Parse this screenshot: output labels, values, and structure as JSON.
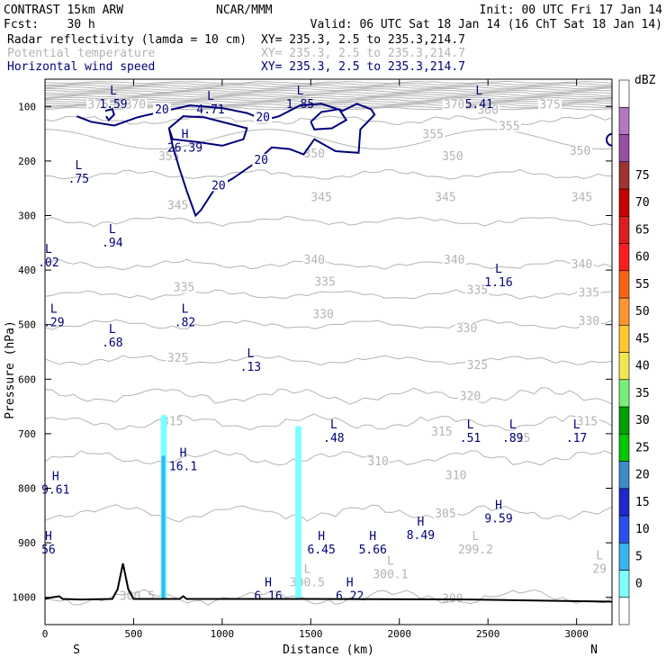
{
  "header": {
    "title": "CONTRAST 15km ARW",
    "org": "NCAR/MMM",
    "init": "Init: 00 UTC Fri 17 Jan 14",
    "fcst": "Fcst:    30 h",
    "valid": "Valid: 06 UTC Sat 18 Jan 14 (16 ChT Sat 18 Jan 14)",
    "field1": "Radar reflectivity (lamda = 10 cm)",
    "field1_xy": "XY= 235.3,  2.5 to 235.3,214.7",
    "field2": "Potential temperature",
    "field2_xy": "XY= 235.3,  2.5 to 235.3,214.7",
    "field3": "Horizontal wind speed",
    "field3_xy": "XY= 235.3,  2.5 to 235.3,214.7"
  },
  "colors": {
    "theta": "#b4b4b4",
    "wind": "#00007a",
    "terrain": "#000000",
    "refl_light": "#80ffff",
    "refl_mid": "#38b4f0"
  },
  "chart_data": {
    "type": "cross-section",
    "xlabel": "Distance (km)",
    "ylabel": "Pressure (hPa)",
    "xlim": [
      0,
      3200
    ],
    "ylim": [
      1050,
      50
    ],
    "x_ticks": [
      0,
      500,
      1000,
      1500,
      2000,
      2500,
      3000
    ],
    "y_ticks": [
      100,
      200,
      300,
      400,
      500,
      600,
      700,
      800,
      900,
      1000
    ],
    "end_labels": {
      "left": "S",
      "right": "N"
    },
    "theta_levels": [
      {
        "v": 300,
        "p": 1000
      },
      {
        "v": 305,
        "p": 845
      },
      {
        "v": 310,
        "p": 745
      },
      {
        "v": 315,
        "p": 680
      },
      {
        "v": 320,
        "p": 630
      },
      {
        "v": 325,
        "p": 565
      },
      {
        "v": 330,
        "p": 500
      },
      {
        "v": 335,
        "p": 445
      },
      {
        "v": 340,
        "p": 390
      },
      {
        "v": 345,
        "p": 310
      },
      {
        "v": 350,
        "p": 225
      },
      {
        "v": 355,
        "p": 160
      },
      {
        "v": 360,
        "p": 125
      },
      {
        "v": 370,
        "p": 100
      },
      {
        "v": 375,
        "p": 95
      }
    ],
    "theta_labels": [
      {
        "x": 300,
        "p": 100,
        "t": "375"
      },
      {
        "x": 510,
        "p": 100,
        "t": "370"
      },
      {
        "x": 2310,
        "p": 100,
        "t": "370"
      },
      {
        "x": 2500,
        "p": 110,
        "t": "360"
      },
      {
        "x": 2850,
        "p": 100,
        "t": "375"
      },
      {
        "x": 2190,
        "p": 155,
        "t": "355"
      },
      {
        "x": 2620,
        "p": 140,
        "t": "355"
      },
      {
        "x": 700,
        "p": 195,
        "t": "355"
      },
      {
        "x": 1520,
        "p": 190,
        "t": "350"
      },
      {
        "x": 2300,
        "p": 195,
        "t": "350"
      },
      {
        "x": 3020,
        "p": 185,
        "t": "350"
      },
      {
        "x": 750,
        "p": 285,
        "t": "345"
      },
      {
        "x": 1560,
        "p": 270,
        "t": "345"
      },
      {
        "x": 2260,
        "p": 270,
        "t": "345"
      },
      {
        "x": 3030,
        "p": 270,
        "t": "345"
      },
      {
        "x": 1520,
        "p": 385,
        "t": "340"
      },
      {
        "x": 2310,
        "p": 385,
        "t": "340"
      },
      {
        "x": 3030,
        "p": 393,
        "t": "340"
      },
      {
        "x": 785,
        "p": 435,
        "t": "335"
      },
      {
        "x": 1580,
        "p": 425,
        "t": "335"
      },
      {
        "x": 2440,
        "p": 440,
        "t": "335"
      },
      {
        "x": 3070,
        "p": 445,
        "t": "335"
      },
      {
        "x": 1570,
        "p": 485,
        "t": "330"
      },
      {
        "x": 2380,
        "p": 510,
        "t": "330"
      },
      {
        "x": 3070,
        "p": 497,
        "t": "330"
      },
      {
        "x": 750,
        "p": 565,
        "t": "325"
      },
      {
        "x": 2440,
        "p": 578,
        "t": "325"
      },
      {
        "x": 2400,
        "p": 635,
        "t": "320"
      },
      {
        "x": 720,
        "p": 681,
        "t": "315"
      },
      {
        "x": 2240,
        "p": 700,
        "t": "315"
      },
      {
        "x": 2680,
        "p": 712,
        "t": "315"
      },
      {
        "x": 3060,
        "p": 681,
        "t": "315"
      },
      {
        "x": 1880,
        "p": 755,
        "t": "310"
      },
      {
        "x": 2320,
        "p": 780,
        "t": "310"
      },
      {
        "x": 2260,
        "p": 850,
        "t": "305"
      }
    ],
    "theta_marks": [
      {
        "x": 1480,
        "p": 975,
        "kind": "L",
        "val": "300.5"
      },
      {
        "x": 520,
        "p": 1000,
        "kind": "",
        "val": "300.5"
      },
      {
        "x": 2430,
        "p": 915,
        "kind": "L",
        "val": "299.2"
      },
      {
        "x": 1950,
        "p": 960,
        "kind": "L",
        "val": "300.1"
      },
      {
        "x": 2300,
        "p": 1005,
        "kind": "",
        "val": "300"
      },
      {
        "x": 3130,
        "p": 950,
        "kind": "L",
        "val": "29"
      }
    ],
    "wind_contours": [
      {
        "label": "20",
        "label_x": 660,
        "label_p": 108
      },
      {
        "label": "20",
        "label_x": 1230,
        "label_p": 122
      },
      {
        "label": "20",
        "label_x": 1220,
        "label_p": 200
      },
      {
        "label": "20",
        "label_x": 980,
        "label_p": 247
      }
    ],
    "wind_marks": [
      {
        "kind": "L",
        "x": 386,
        "p": 88,
        "val": "1.59"
      },
      {
        "kind": "L",
        "x": 935,
        "p": 98,
        "val": "4.71"
      },
      {
        "kind": "L",
        "x": 1440,
        "p": 88,
        "val": "1.85"
      },
      {
        "kind": "L",
        "x": 2450,
        "p": 88,
        "val": "5.41"
      },
      {
        "kind": "H",
        "x": 790,
        "p": 168,
        "val": "26.39"
      },
      {
        "kind": "L",
        "x": 190,
        "p": 225,
        "val": ".75"
      },
      {
        "kind": "L",
        "x": 380,
        "p": 342,
        "val": ".94"
      },
      {
        "kind": "L",
        "x": 20,
        "p": 378,
        "val": ".02"
      },
      {
        "kind": "L",
        "x": 2560,
        "p": 415,
        "val": "1.16"
      },
      {
        "kind": "L",
        "x": 50,
        "p": 488,
        "val": ".29"
      },
      {
        "kind": "L",
        "x": 790,
        "p": 488,
        "val": ".82"
      },
      {
        "kind": "L",
        "x": 380,
        "p": 525,
        "val": ".68"
      },
      {
        "kind": "L",
        "x": 1160,
        "p": 570,
        "val": ".13"
      },
      {
        "kind": "L",
        "x": 1630,
        "p": 700,
        "val": ".48"
      },
      {
        "kind": "L",
        "x": 2400,
        "p": 700,
        "val": ".51"
      },
      {
        "kind": "L",
        "x": 2640,
        "p": 700,
        "val": ".89"
      },
      {
        "kind": "L",
        "x": 3000,
        "p": 700,
        "val": ".17"
      },
      {
        "kind": "H",
        "x": 780,
        "p": 752,
        "val": "16.1"
      },
      {
        "kind": "H",
        "x": 60,
        "p": 795,
        "val": "9.61"
      },
      {
        "kind": "H",
        "x": 2560,
        "p": 848,
        "val": "9.59"
      },
      {
        "kind": "H",
        "x": 2120,
        "p": 878,
        "val": "8.49"
      },
      {
        "kind": "H",
        "x": 1560,
        "p": 905,
        "val": "6.45"
      },
      {
        "kind": "H",
        "x": 1850,
        "p": 905,
        "val": "5.66"
      },
      {
        "kind": "H",
        "x": 20,
        "p": 905,
        "val": "56"
      },
      {
        "kind": "H",
        "x": 1260,
        "p": 990,
        "val": "6.16"
      },
      {
        "kind": "H",
        "x": 1720,
        "p": 990,
        "val": "6.22"
      }
    ],
    "reflectivity_columns": [
      {
        "x": 670,
        "p_top": 665,
        "p_bottom": 1005,
        "dbz": 7
      },
      {
        "x": 668,
        "p_top": 740,
        "p_bottom": 1005,
        "dbz": 12
      },
      {
        "x": 1430,
        "p_top": 685,
        "p_bottom": 1005,
        "dbz": 7
      }
    ],
    "terrain": [
      {
        "x": 0,
        "p": 1003
      },
      {
        "x": 40,
        "p": 1000
      },
      {
        "x": 80,
        "p": 998
      },
      {
        "x": 100,
        "p": 1003
      },
      {
        "x": 200,
        "p": 1004
      },
      {
        "x": 380,
        "p": 1003
      },
      {
        "x": 410,
        "p": 985
      },
      {
        "x": 440,
        "p": 938
      },
      {
        "x": 470,
        "p": 985
      },
      {
        "x": 500,
        "p": 1003
      },
      {
        "x": 760,
        "p": 1003
      },
      {
        "x": 780,
        "p": 998
      },
      {
        "x": 800,
        "p": 1003
      },
      {
        "x": 1500,
        "p": 1003
      },
      {
        "x": 2400,
        "p": 1004
      },
      {
        "x": 3200,
        "p": 1008
      }
    ],
    "colorbar": {
      "label": "dBZ",
      "levels": [
        "0",
        "5",
        "10",
        "15",
        "20",
        "25",
        "30",
        "35",
        "40",
        "45",
        "50",
        "55",
        "60",
        "65",
        "70",
        "75"
      ],
      "colors": [
        "#ffffff",
        "#80ffff",
        "#38b4f0",
        "#2850f0",
        "#1e28c8",
        "#3c8cc8",
        "#00c800",
        "#00a000",
        "#78f078",
        "#f0e650",
        "#ffc832",
        "#ff9632",
        "#ff6414",
        "#ff1e1e",
        "#dc1e1e",
        "#c80000",
        "#a03232",
        "#9650a0",
        "#b478c0",
        "#ffffff"
      ]
    }
  }
}
